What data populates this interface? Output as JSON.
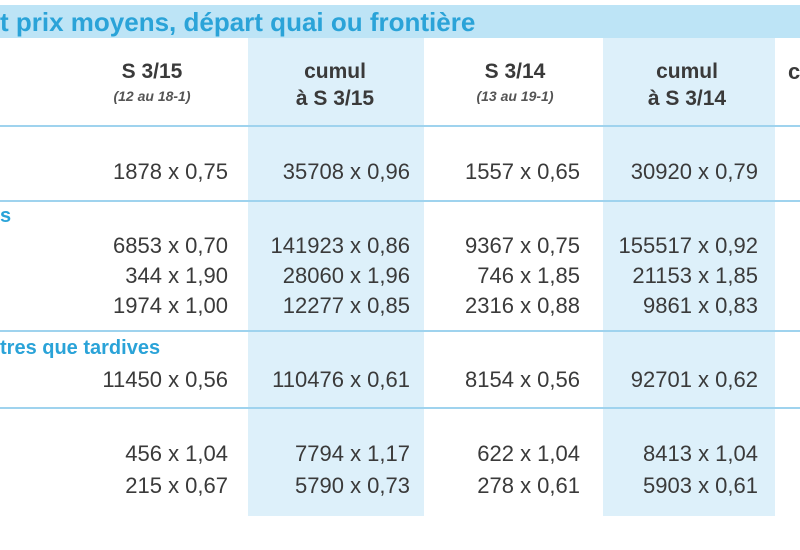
{
  "title": "t prix moyens, départ quai ou frontière",
  "headers": [
    {
      "line1": "S 3/15",
      "line2": "(12 au 18-1)"
    },
    {
      "line1": "cumul",
      "line2": "à S 3/15"
    },
    {
      "line1": "S 3/14",
      "line2": "(13 au 19-1)"
    },
    {
      "line1": "cumul",
      "line2": "à S 3/14"
    }
  ],
  "edge_header": "c",
  "sections": [
    {
      "label": "",
      "rows": [
        [
          "1878 x 0,75",
          "35708 x 0,96",
          "1557 x 0,65",
          "30920 x 0,79"
        ]
      ]
    },
    {
      "label": "s",
      "rows": [
        [
          "6853 x 0,70",
          "141923 x 0,86",
          "9367 x 0,75",
          "155517 x 0,92"
        ],
        [
          "344 x 1,90",
          "28060 x 1,96",
          "746 x 1,85",
          "21153 x 1,85"
        ],
        [
          "1974 x 1,00",
          "12277 x 0,85",
          "2316 x 0,88",
          "9861 x 0,83"
        ]
      ]
    },
    {
      "label": "tres que tardives",
      "rows": [
        [
          "11450 x 0,56",
          "110476 x 0,61",
          "8154 x 0,56",
          "92701 x 0,62"
        ]
      ]
    },
    {
      "label": "",
      "rows": [
        [
          "456 x 1,04",
          "7794 x 1,17",
          "622 x 1,04",
          "8413 x 1,04"
        ],
        [
          "215 x 0,67",
          "5790 x 0,73",
          "278 x 0,61",
          "5903 x 0,61"
        ]
      ]
    }
  ]
}
